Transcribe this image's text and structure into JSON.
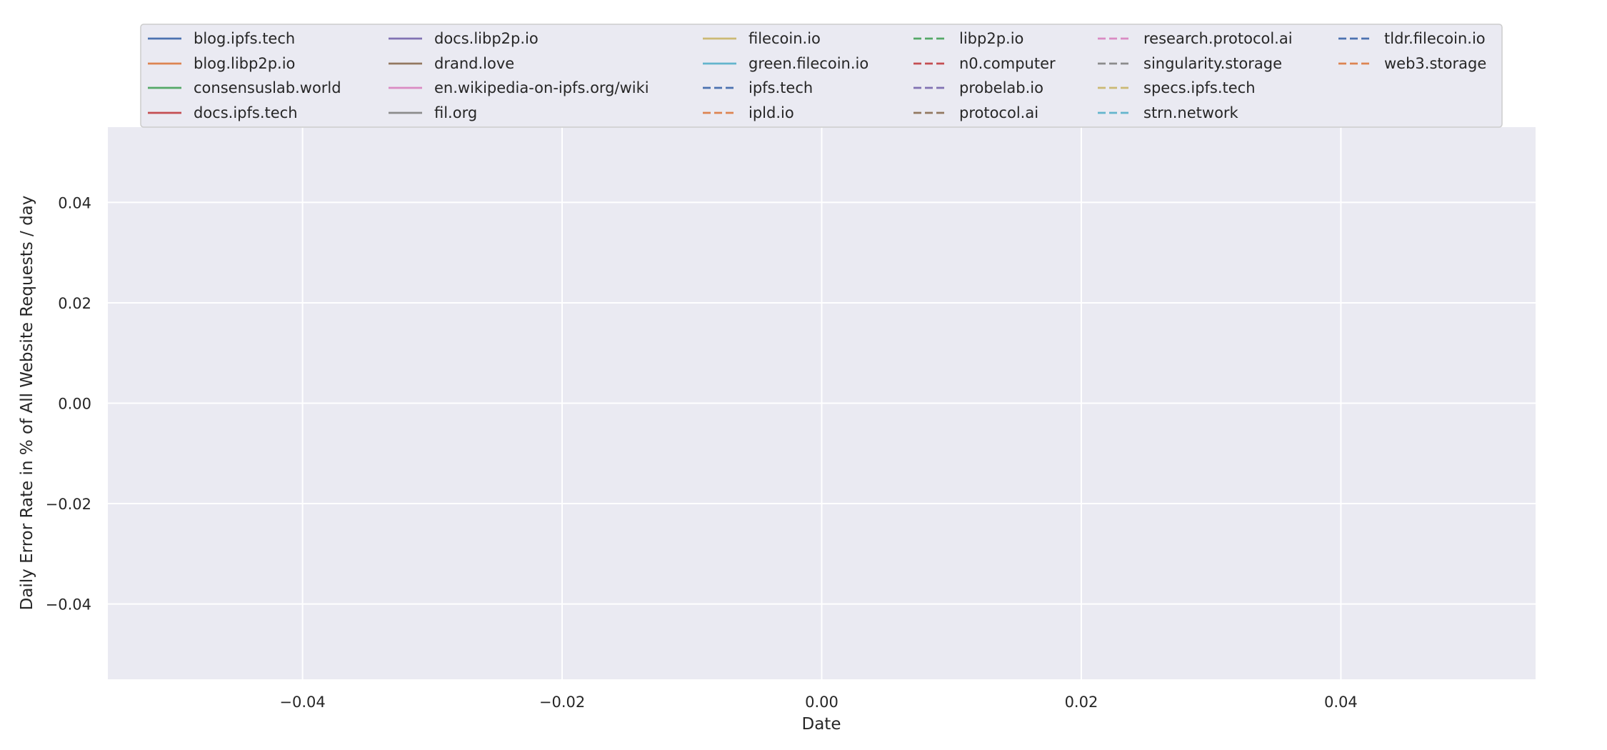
{
  "chart_data": {
    "type": "line",
    "title": "",
    "xlabel": "Date",
    "ylabel": "Daily Error Rate in % of All Website Requests / day",
    "xlim": [
      -0.055,
      0.055
    ],
    "ylim": [
      -0.055,
      0.055
    ],
    "x_ticks": [
      -0.04,
      -0.02,
      0.0,
      0.02,
      0.04
    ],
    "x_tick_labels": [
      "−0.04",
      "−0.02",
      "0.00",
      "0.02",
      "0.04"
    ],
    "y_ticks": [
      0.04,
      0.02,
      0.0,
      -0.02,
      -0.04
    ],
    "y_tick_labels": [
      "0.04",
      "0.02",
      "0.00",
      "−0.02",
      "−0.04"
    ],
    "grid": true,
    "legend_position": "top-center",
    "legend_columns": 6,
    "series": [
      {
        "name": "blog.ipfs.tech",
        "color": "#4c72b0",
        "dash": "solid",
        "values": []
      },
      {
        "name": "blog.libp2p.io",
        "color": "#dd8452",
        "dash": "solid",
        "values": []
      },
      {
        "name": "consensuslab.world",
        "color": "#55a868",
        "dash": "solid",
        "values": []
      },
      {
        "name": "docs.ipfs.tech",
        "color": "#c44e52",
        "dash": "solid",
        "values": []
      },
      {
        "name": "docs.libp2p.io",
        "color": "#8172b3",
        "dash": "solid",
        "values": []
      },
      {
        "name": "drand.love",
        "color": "#937860",
        "dash": "solid",
        "values": []
      },
      {
        "name": "en.wikipedia-on-ipfs.org/wiki",
        "color": "#da8bc3",
        "dash": "solid",
        "values": []
      },
      {
        "name": "fil.org",
        "color": "#8c8c8c",
        "dash": "solid",
        "values": []
      },
      {
        "name": "filecoin.io",
        "color": "#ccb974",
        "dash": "solid",
        "values": []
      },
      {
        "name": "green.filecoin.io",
        "color": "#64b5cd",
        "dash": "solid",
        "values": []
      },
      {
        "name": "ipfs.tech",
        "color": "#4c72b0",
        "dash": "dashed",
        "values": []
      },
      {
        "name": "ipld.io",
        "color": "#dd8452",
        "dash": "dashed",
        "values": []
      },
      {
        "name": "libp2p.io",
        "color": "#55a868",
        "dash": "dashed",
        "values": []
      },
      {
        "name": "n0.computer",
        "color": "#c44e52",
        "dash": "dashed",
        "values": []
      },
      {
        "name": "probelab.io",
        "color": "#8172b3",
        "dash": "dashed",
        "values": []
      },
      {
        "name": "protocol.ai",
        "color": "#937860",
        "dash": "dashed",
        "values": []
      },
      {
        "name": "research.protocol.ai",
        "color": "#da8bc3",
        "dash": "dashed",
        "values": []
      },
      {
        "name": "singularity.storage",
        "color": "#8c8c8c",
        "dash": "dashed",
        "values": []
      },
      {
        "name": "specs.ipfs.tech",
        "color": "#ccb974",
        "dash": "dashed",
        "values": []
      },
      {
        "name": "strn.network",
        "color": "#64b5cd",
        "dash": "dashed",
        "values": []
      },
      {
        "name": "tldr.filecoin.io",
        "color": "#4c72b0",
        "dash": "dashed",
        "values": []
      },
      {
        "name": "web3.storage",
        "color": "#dd8452",
        "dash": "dashed",
        "values": []
      }
    ],
    "colors": {
      "plot_background": "#eaeaf2",
      "grid": "#ffffff",
      "legend_background": "#eaeaf2",
      "legend_border": "#cccccc"
    }
  }
}
